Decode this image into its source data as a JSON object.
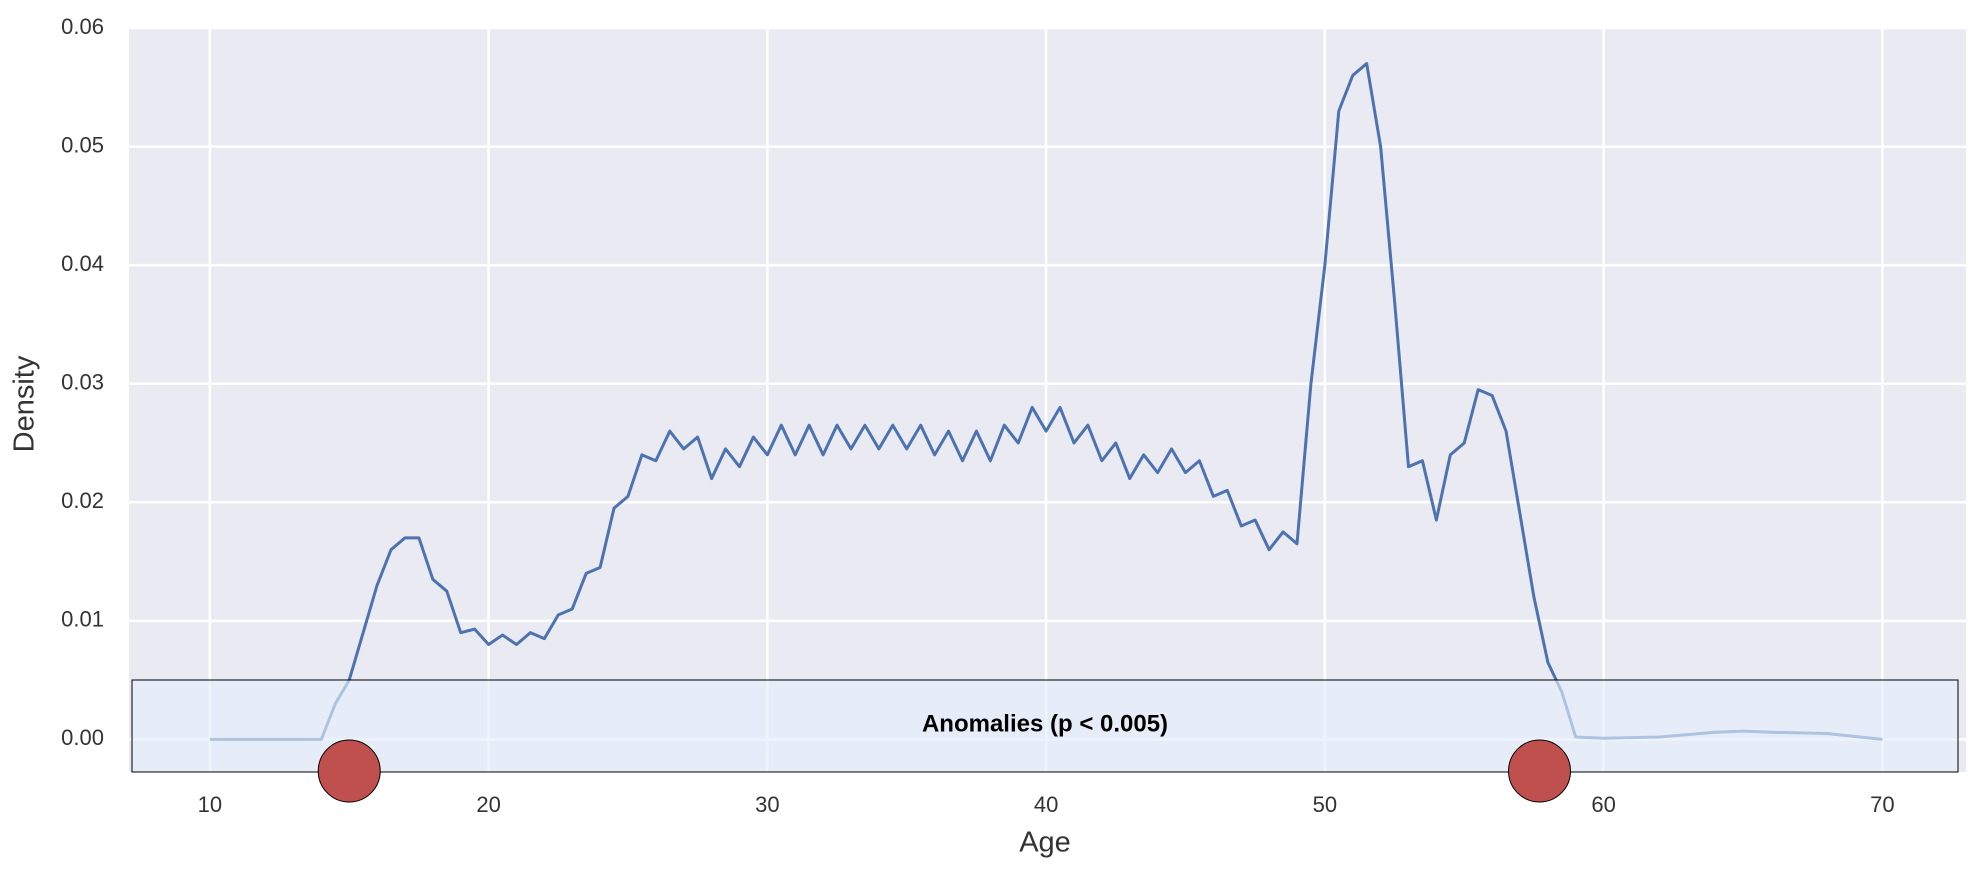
{
  "chart_data": {
    "type": "line",
    "x_label": "Age",
    "y_label": "Density",
    "x": [
      10,
      14,
      14.5,
      15,
      15.5,
      16,
      16.5,
      17,
      17.5,
      18,
      18.5,
      19,
      19.5,
      20,
      20.5,
      21,
      21.5,
      22,
      22.5,
      23,
      23.5,
      24,
      24.5,
      25,
      25.5,
      26,
      26.5,
      27,
      27.5,
      28,
      28.5,
      29,
      29.5,
      30,
      30.5,
      31,
      31.5,
      32,
      32.5,
      33,
      33.5,
      34,
      34.5,
      35,
      35.5,
      36,
      36.5,
      37,
      37.5,
      38,
      38.5,
      39,
      39.5,
      40,
      40.5,
      41,
      41.5,
      42,
      42.5,
      43,
      43.5,
      44,
      44.5,
      45,
      45.5,
      46,
      46.5,
      47,
      47.5,
      48,
      48.5,
      49,
      49.5,
      50,
      50.5,
      51,
      51.5,
      52,
      52.5,
      53,
      53.5,
      54,
      54.5,
      55,
      55.5,
      56,
      56.5,
      57,
      57.5,
      58,
      58.5,
      59,
      60,
      62,
      64,
      65,
      66,
      68,
      70
    ],
    "series": [
      {
        "name": "Density",
        "color": "#4c72b0",
        "values": [
          0,
          0,
          0.003,
          0.005,
          0.009,
          0.013,
          0.016,
          0.017,
          0.017,
          0.0135,
          0.0125,
          0.009,
          0.0093,
          0.008,
          0.0088,
          0.008,
          0.009,
          0.0085,
          0.0105,
          0.011,
          0.014,
          0.0145,
          0.0195,
          0.0205,
          0.024,
          0.0235,
          0.026,
          0.0245,
          0.0255,
          0.022,
          0.0245,
          0.023,
          0.0255,
          0.024,
          0.0265,
          0.024,
          0.0265,
          0.024,
          0.0265,
          0.0245,
          0.0265,
          0.0245,
          0.0265,
          0.0245,
          0.0265,
          0.024,
          0.026,
          0.0235,
          0.026,
          0.0235,
          0.0265,
          0.025,
          0.028,
          0.026,
          0.028,
          0.025,
          0.0265,
          0.0235,
          0.025,
          0.022,
          0.024,
          0.0225,
          0.0245,
          0.0225,
          0.0235,
          0.0205,
          0.021,
          0.018,
          0.0185,
          0.016,
          0.0175,
          0.0165,
          0.03,
          0.04,
          0.053,
          0.056,
          0.057,
          0.05,
          0.037,
          0.023,
          0.0235,
          0.0185,
          0.024,
          0.025,
          0.0295,
          0.029,
          0.026,
          0.019,
          0.012,
          0.0065,
          0.004,
          0.0002,
          0.0001,
          0.0002,
          0.0006,
          0.0007,
          0.0006,
          0.0005,
          0
        ]
      }
    ],
    "xlim": [
      7.1,
      73
    ],
    "ylim": [
      -0.00275,
      0.06
    ],
    "xticks": [
      10,
      20,
      30,
      40,
      50,
      60,
      70
    ],
    "yticks": [
      {
        "value": 0,
        "label": "0.00"
      },
      {
        "value": 0.01,
        "label": "0.01"
      },
      {
        "value": 0.02,
        "label": "0.02"
      },
      {
        "value": 0.03,
        "label": "0.03"
      },
      {
        "value": 0.04,
        "label": "0.04"
      },
      {
        "value": 0.05,
        "label": "0.05"
      },
      {
        "value": 0.06,
        "label": "0.06"
      }
    ],
    "grid": true,
    "annotation": "Anomalies (p < 0.005)",
    "anomaly_x": [
      15,
      57.7
    ],
    "anomaly_color": "#c0504d"
  }
}
